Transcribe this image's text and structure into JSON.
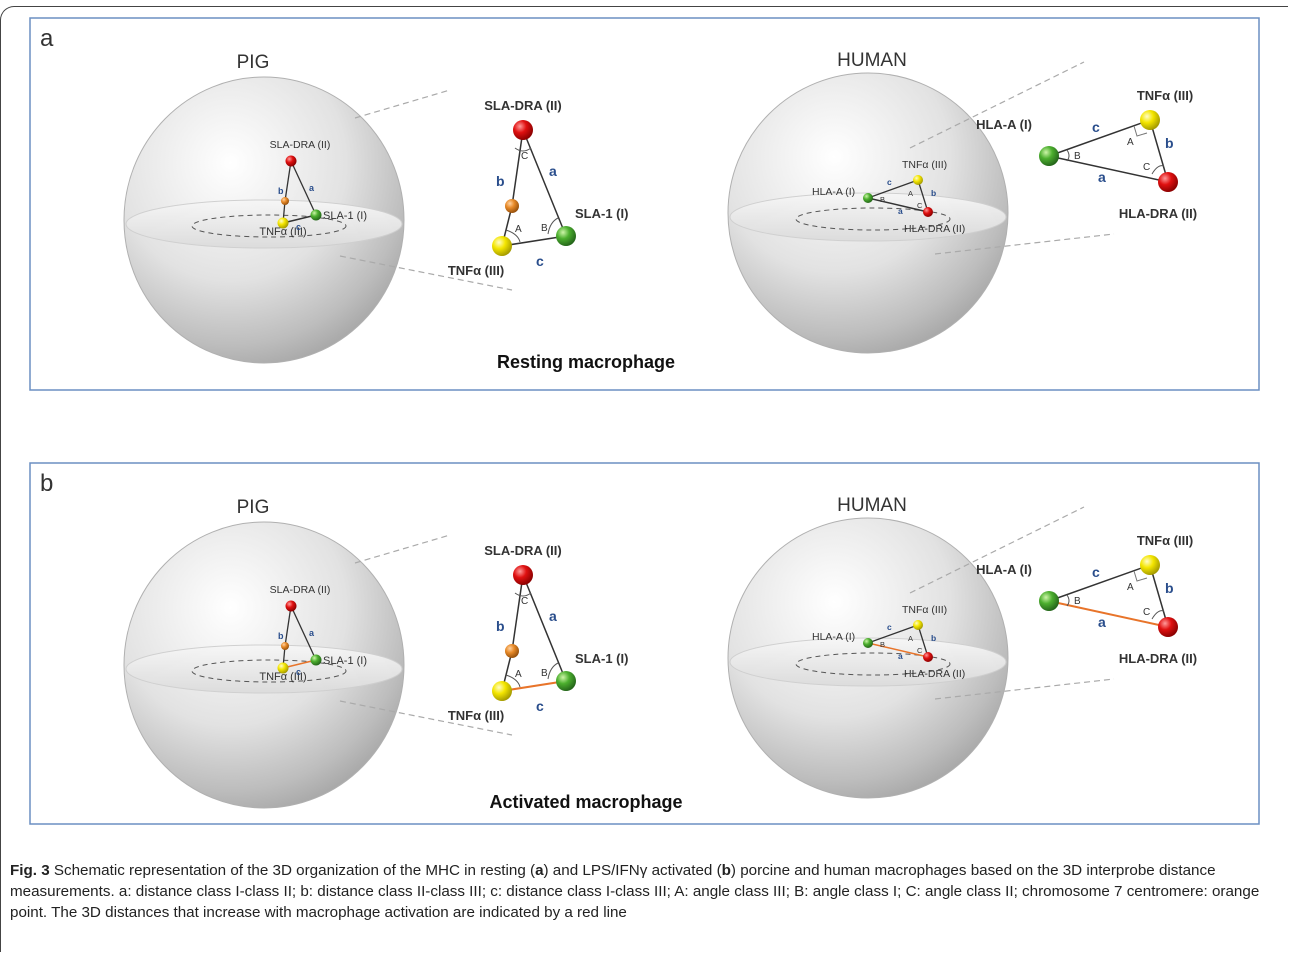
{
  "figure": {
    "panels": [
      {
        "letter": "a",
        "left_title": "PIG",
        "right_title": "HUMAN",
        "bottom_label": "Resting macrophage",
        "pig_small": {
          "class2": "SLA-DRA (II)",
          "class1": "SLA-1 (I)",
          "class3": "TNFα (III)"
        },
        "pig_big": {
          "class2": "SLA-DRA (II)",
          "class1": "SLA-1 (I)",
          "class3": "TNFα (III)"
        },
        "human_small": {
          "class3": "TNFα (III)",
          "class1": "HLA-A (I)",
          "class2": "HLA-DRA (II)"
        },
        "human_big": {
          "class3": "TNFα (III)",
          "class1": "HLA-A (I)",
          "class2": "HLA-DRA (II)"
        }
      },
      {
        "letter": "b",
        "left_title": "PIG",
        "right_title": "HUMAN",
        "bottom_label": "Activated macrophage",
        "pig_small": {
          "class2": "SLA-DRA (II)",
          "class1": "SLA-1 (I)",
          "class3": "TNFα (III)"
        },
        "pig_big": {
          "class2": "SLA-DRA (II)",
          "class1": "SLA-1 (I)",
          "class3": "TNFα (III)"
        },
        "human_small": {
          "class3": "TNFα (III)",
          "class1": "HLA-A (I)",
          "class2": "HLA-DRA (II)"
        },
        "human_big": {
          "class3": "TNFα (III)",
          "class1": "HLA-A (I)",
          "class2": "HLA-DRA (II)"
        }
      }
    ],
    "side_labels": {
      "a": "a",
      "b": "b",
      "c": "c"
    },
    "angle_labels": {
      "A": "A",
      "B": "B",
      "C": "C"
    },
    "colors": {
      "class1": "#4caf2e",
      "class2": "#e01010",
      "class3": "#f4e600",
      "centromere": "#e88a28",
      "activated_line": "#e8742a",
      "side_label": "#2a4e8c",
      "panel_border": "#6b8fc2"
    }
  },
  "caption": {
    "fig_label": "Fig. 3",
    "t1": " Schematic representation of the 3D organization of the MHC in resting (",
    "b1": "a",
    "t2": ") and LPS/IFNγ activated (",
    "b2": "b",
    "t3": ") porcine and human macrophages based on the 3D interprobe distance measurements. a: distance class I-class II; b: distance class II-class III; c: distance class I-class III; A: angle class III; B: angle class I; C: angle class II; chromosome 7 centromere: orange point. The 3D distances that increase with macrophage activation are indicated by a red line"
  }
}
